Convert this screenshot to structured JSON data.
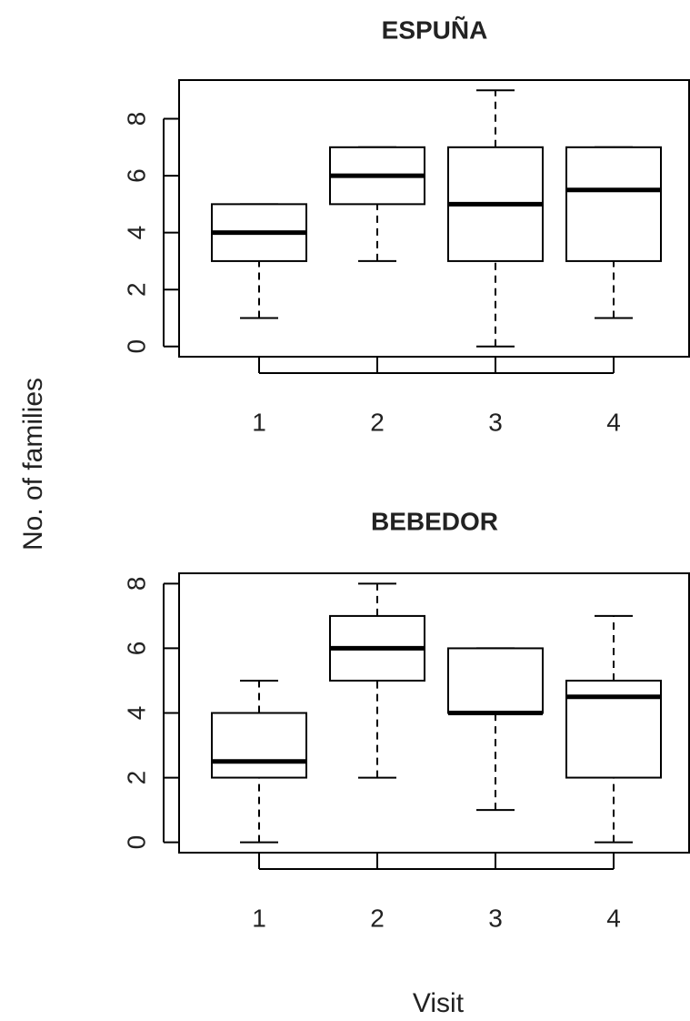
{
  "ylabel": "No. of families",
  "xlabel": "Visit",
  "chart_data": [
    {
      "type": "box",
      "title": "ESPUÑA",
      "categories": [
        "1",
        "2",
        "3",
        "4"
      ],
      "min": [
        1,
        3,
        0,
        1
      ],
      "q1": [
        3,
        5,
        3,
        3
      ],
      "median": [
        4,
        6,
        5,
        5.5
      ],
      "q3": [
        5,
        7,
        7,
        7
      ],
      "max": [
        5,
        7,
        9,
        7
      ],
      "ylim": [
        -0.36,
        9.36
      ],
      "yticks": [
        0,
        2,
        4,
        6,
        8
      ],
      "color": "#000000"
    },
    {
      "type": "box",
      "title": "BEBEDOR",
      "categories": [
        "1",
        "2",
        "3",
        "4"
      ],
      "min": [
        0,
        2,
        1,
        0
      ],
      "q1": [
        2,
        5,
        4,
        2
      ],
      "median": [
        2.5,
        6,
        4,
        4.5
      ],
      "q3": [
        4,
        7,
        6,
        5
      ],
      "max": [
        5,
        8,
        6,
        7
      ],
      "ylim": [
        -0.32,
        8.32
      ],
      "yticks": [
        0,
        2,
        4,
        6,
        8
      ],
      "color": "#000000"
    }
  ]
}
